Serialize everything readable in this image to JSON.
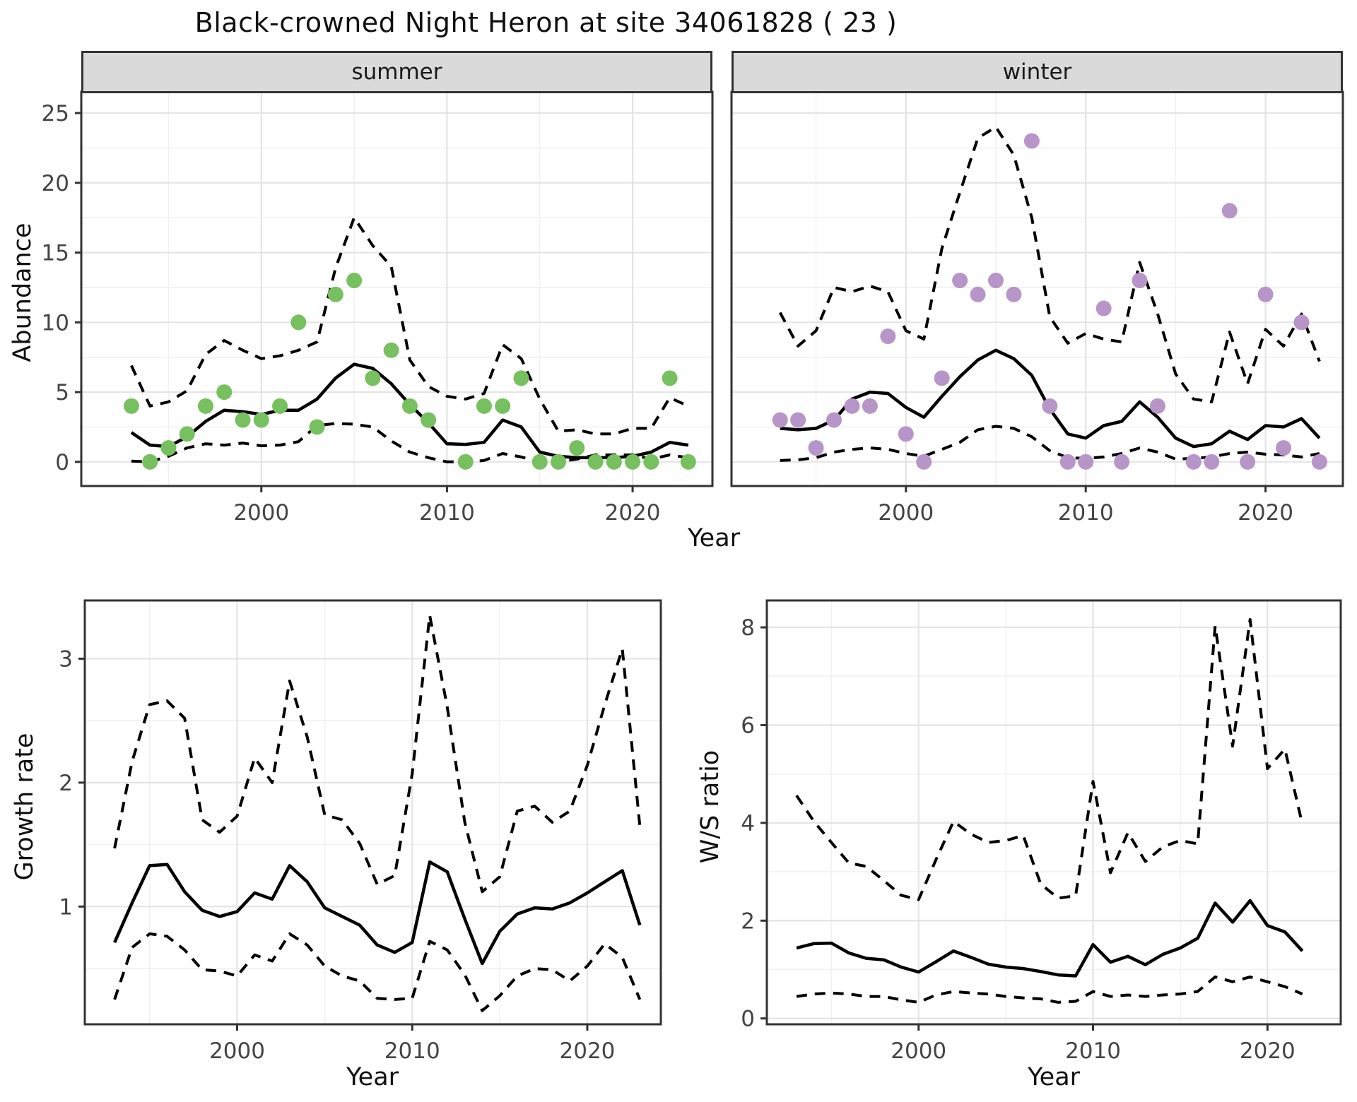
{
  "title": "Black-crowned Night Heron at site 34061828 ( 23 )",
  "facets": {
    "summer": "summer",
    "winter": "winter"
  },
  "axis_titles": {
    "abundance": "Abundance",
    "year_top": "Year",
    "growth_rate": "Growth rate",
    "year_bottom_left": "Year",
    "ws_ratio": "W/S ratio",
    "year_bottom_right": "Year"
  },
  "colors": {
    "summer_points": "#77c05f",
    "winter_points": "#b795c8",
    "line": "#000000",
    "strip_fill": "#dadada",
    "panel_border": "#333333",
    "grid_major": "#e4e4e4",
    "grid_minor": "#f1f1f1",
    "tick_label": "#444444"
  },
  "chart_data": [
    {
      "id": "summer",
      "type": "line",
      "title": "summer",
      "xlabel": "Year",
      "ylabel": "Abundance",
      "x_ticks": [
        2000,
        2010,
        2020
      ],
      "y_ticks": [
        0,
        5,
        10,
        15,
        20,
        25
      ],
      "show_y_labels": true,
      "point_color": "#77c05f",
      "x": [
        1993,
        1994,
        1995,
        1996,
        1997,
        1998,
        1999,
        2000,
        2001,
        2002,
        2003,
        2004,
        2005,
        2006,
        2007,
        2008,
        2009,
        2010,
        2011,
        2012,
        2013,
        2014,
        2015,
        2016,
        2017,
        2018,
        2019,
        2020,
        2021,
        2022,
        2023
      ],
      "series": [
        {
          "name": "observed",
          "kind": "scatter",
          "values": [
            4,
            0,
            1,
            2,
            4,
            5,
            3,
            3,
            4,
            10,
            2.5,
            12,
            13,
            6,
            8,
            4,
            3,
            null,
            0,
            4,
            4,
            6,
            0,
            0,
            1,
            0,
            0,
            0,
            0,
            6,
            0
          ]
        },
        {
          "name": "median",
          "kind": "line",
          "style": "solid",
          "values": [
            2.1,
            1.2,
            1.1,
            1.8,
            2.9,
            3.7,
            3.6,
            3.4,
            3.7,
            3.7,
            4.5,
            6.0,
            7.0,
            6.7,
            5.6,
            4.1,
            2.8,
            1.3,
            1.25,
            1.4,
            3.0,
            2.5,
            0.7,
            0.4,
            0.3,
            0.3,
            0.3,
            0.4,
            0.7,
            1.4,
            1.2
          ]
        },
        {
          "name": "upper95",
          "kind": "line",
          "style": "dashed",
          "values": [
            6.9,
            4.0,
            4.3,
            5.1,
            7.7,
            8.7,
            8.0,
            7.4,
            7.6,
            8.0,
            8.6,
            13.9,
            17.5,
            15.5,
            14.0,
            7.3,
            5.4,
            4.7,
            4.5,
            4.9,
            8.4,
            7.4,
            4.5,
            2.2,
            2.3,
            2.0,
            2.0,
            2.4,
            2.4,
            4.6,
            4.0
          ]
        },
        {
          "name": "lower95",
          "kind": "line",
          "style": "dashed",
          "values": [
            0.05,
            0,
            0.4,
            1.0,
            1.3,
            1.2,
            1.35,
            1.15,
            1.2,
            1.45,
            2.6,
            2.75,
            2.7,
            2.5,
            1.5,
            0.7,
            0.3,
            0,
            0,
            0.1,
            0.6,
            0.35,
            0,
            0,
            0.2,
            0.5,
            0.5,
            0.5,
            0.2,
            0.5,
            0.3
          ]
        }
      ]
    },
    {
      "id": "winter",
      "type": "line",
      "title": "winter",
      "xlabel": "Year",
      "ylabel": "Abundance",
      "x_ticks": [
        2000,
        2010,
        2020
      ],
      "y_ticks": [
        0,
        5,
        10,
        15,
        20,
        25
      ],
      "show_y_labels": false,
      "point_color": "#b795c8",
      "x": [
        1993,
        1994,
        1995,
        1996,
        1997,
        1998,
        1999,
        2000,
        2001,
        2002,
        2003,
        2004,
        2005,
        2006,
        2007,
        2008,
        2009,
        2010,
        2011,
        2012,
        2013,
        2014,
        2015,
        2016,
        2017,
        2018,
        2019,
        2020,
        2021,
        2022,
        2023
      ],
      "series": [
        {
          "name": "observed",
          "kind": "scatter",
          "values": [
            3,
            3,
            1,
            3,
            4,
            4,
            9,
            2,
            0,
            6,
            13,
            12,
            13,
            12,
            23,
            4,
            0,
            0,
            11,
            0,
            13,
            4,
            null,
            0,
            0,
            18,
            0,
            12,
            1,
            10,
            0
          ]
        },
        {
          "name": "median",
          "kind": "line",
          "style": "solid",
          "values": [
            2.4,
            2.3,
            2.4,
            3.0,
            4.5,
            5.0,
            4.9,
            3.9,
            3.2,
            4.7,
            6.1,
            7.3,
            8.0,
            7.4,
            6.2,
            3.8,
            2.0,
            1.7,
            2.6,
            2.9,
            4.3,
            3.2,
            1.7,
            1.1,
            1.3,
            2.2,
            1.6,
            2.6,
            2.5,
            3.1,
            1.7
          ]
        },
        {
          "name": "upper95",
          "kind": "line",
          "style": "dashed",
          "values": [
            10.7,
            8.3,
            9.4,
            12.5,
            12.2,
            12.6,
            12.2,
            9.4,
            8.8,
            15.3,
            19.3,
            23.2,
            24.0,
            22.0,
            17.5,
            10.4,
            8.5,
            9.2,
            8.8,
            8.6,
            14.3,
            10.6,
            6.3,
            4.5,
            4.3,
            9.3,
            5.6,
            9.5,
            8.3,
            10.6,
            7.2
          ]
        },
        {
          "name": "lower95",
          "kind": "line",
          "style": "dashed",
          "values": [
            0.1,
            0.15,
            0.3,
            0.7,
            0.9,
            1.0,
            0.9,
            0.6,
            0.4,
            0.9,
            1.4,
            2.3,
            2.55,
            2.4,
            1.8,
            0.8,
            0.3,
            0.25,
            0.35,
            0.6,
            1.0,
            0.7,
            0.2,
            0.25,
            0.35,
            0.6,
            0.7,
            0.55,
            0.5,
            0.35,
            0.6
          ]
        }
      ]
    },
    {
      "id": "growth",
      "type": "line",
      "title": "",
      "xlabel": "Year",
      "ylabel": "Growth rate",
      "x_ticks": [
        2000,
        2010,
        2020
      ],
      "y_ticks": [
        1,
        2,
        3
      ],
      "show_y_labels": true,
      "point_color": null,
      "x": [
        1993,
        1994,
        1995,
        1996,
        1997,
        1998,
        1999,
        2000,
        2001,
        2002,
        2003,
        2004,
        2005,
        2006,
        2007,
        2008,
        2009,
        2010,
        2011,
        2012,
        2013,
        2014,
        2015,
        2016,
        2017,
        2018,
        2019,
        2020,
        2021,
        2022,
        2023
      ],
      "series": [
        {
          "name": "median",
          "kind": "line",
          "style": "solid",
          "values": [
            0.71,
            1.03,
            1.33,
            1.34,
            1.12,
            0.97,
            0.92,
            0.96,
            1.11,
            1.06,
            1.33,
            1.2,
            0.99,
            0.92,
            0.85,
            0.69,
            0.63,
            0.71,
            1.36,
            1.28,
            0.9,
            0.54,
            0.8,
            0.94,
            0.99,
            0.98,
            1.03,
            1.11,
            1.2,
            1.29,
            0.85
          ]
        },
        {
          "name": "upper95",
          "kind": "line",
          "style": "dashed",
          "values": [
            1.47,
            2.17,
            2.63,
            2.66,
            2.52,
            1.7,
            1.6,
            1.73,
            2.2,
            2.0,
            2.82,
            2.37,
            1.74,
            1.7,
            1.51,
            1.18,
            1.25,
            2.07,
            3.35,
            2.61,
            1.68,
            1.12,
            1.24,
            1.77,
            1.81,
            1.68,
            1.77,
            2.14,
            2.63,
            3.08,
            1.65
          ]
        },
        {
          "name": "lower95",
          "kind": "line",
          "style": "dashed",
          "values": [
            0.25,
            0.67,
            0.78,
            0.76,
            0.65,
            0.49,
            0.48,
            0.44,
            0.61,
            0.56,
            0.78,
            0.69,
            0.52,
            0.44,
            0.4,
            0.26,
            0.25,
            0.26,
            0.72,
            0.65,
            0.45,
            0.16,
            0.28,
            0.44,
            0.5,
            0.49,
            0.4,
            0.52,
            0.7,
            0.59,
            0.25
          ]
        }
      ]
    },
    {
      "id": "ws",
      "type": "line",
      "title": "",
      "xlabel": "Year",
      "ylabel": "W/S ratio",
      "x_ticks": [
        2000,
        2010,
        2020
      ],
      "y_ticks": [
        0,
        2,
        4,
        6,
        8
      ],
      "show_y_labels": true,
      "point_color": null,
      "x": [
        1993,
        1994,
        1995,
        1996,
        1997,
        1998,
        1999,
        2000,
        2001,
        2002,
        2003,
        2004,
        2005,
        2006,
        2007,
        2008,
        2009,
        2010,
        2011,
        2012,
        2013,
        2014,
        2015,
        2016,
        2017,
        2018,
        2019,
        2020,
        2021,
        2022
      ],
      "series": [
        {
          "name": "median",
          "kind": "line",
          "style": "solid",
          "values": [
            1.44,
            1.53,
            1.54,
            1.34,
            1.23,
            1.2,
            1.05,
            0.95,
            1.16,
            1.38,
            1.25,
            1.11,
            1.05,
            1.02,
            0.96,
            0.89,
            0.87,
            1.51,
            1.15,
            1.27,
            1.1,
            1.31,
            1.44,
            1.64,
            2.36,
            1.97,
            2.41,
            1.9,
            1.77,
            1.38
          ]
        },
        {
          "name": "upper95",
          "kind": "line",
          "style": "dashed",
          "values": [
            4.56,
            4.03,
            3.6,
            3.18,
            3.11,
            2.82,
            2.52,
            2.43,
            3.25,
            4.03,
            3.77,
            3.6,
            3.64,
            3.74,
            2.75,
            2.46,
            2.51,
            4.85,
            2.98,
            3.8,
            3.21,
            3.51,
            3.64,
            3.57,
            8.03,
            5.57,
            8.16,
            5.11,
            5.51,
            3.97
          ]
        },
        {
          "name": "lower95",
          "kind": "line",
          "style": "dashed",
          "values": [
            0.45,
            0.5,
            0.52,
            0.5,
            0.45,
            0.45,
            0.38,
            0.33,
            0.48,
            0.55,
            0.52,
            0.5,
            0.45,
            0.42,
            0.4,
            0.33,
            0.35,
            0.55,
            0.45,
            0.48,
            0.45,
            0.48,
            0.5,
            0.55,
            0.85,
            0.75,
            0.85,
            0.75,
            0.65,
            0.5
          ]
        }
      ]
    }
  ]
}
